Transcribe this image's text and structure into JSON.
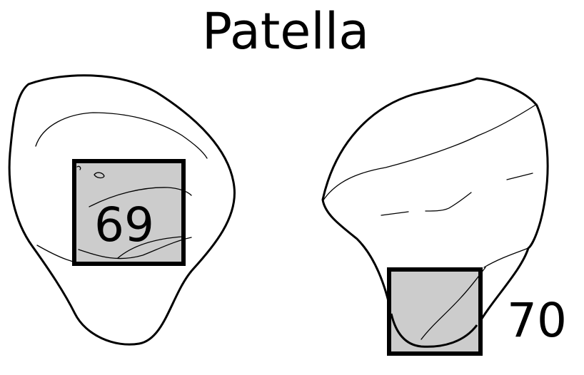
{
  "title": "Patella",
  "regions": [
    {
      "id": "left-view",
      "label": "69"
    },
    {
      "id": "right-view",
      "label": "70"
    }
  ],
  "colors": {
    "region_fill": "#cccccc",
    "stroke": "#000000",
    "background": "#ffffff"
  }
}
